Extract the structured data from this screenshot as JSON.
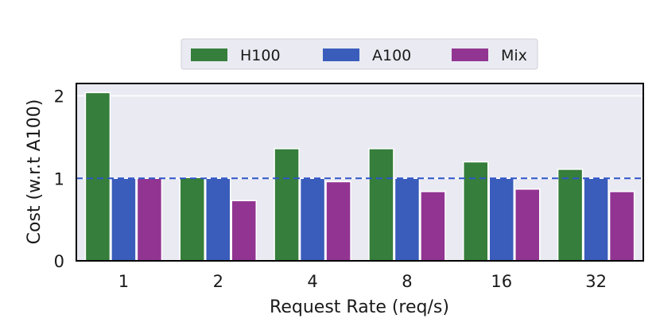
{
  "chart_data": {
    "type": "bar",
    "title": "",
    "xlabel": "Request Rate (req/s)",
    "ylabel": "Cost (w.r.t A100)",
    "categories": [
      "1",
      "2",
      "4",
      "8",
      "16",
      "32"
    ],
    "series": [
      {
        "name": "H100",
        "color": "#367e3b",
        "values": [
          2.04,
          1.01,
          1.36,
          1.36,
          1.2,
          1.11
        ]
      },
      {
        "name": "A100",
        "color": "#3a5dbb",
        "values": [
          1.0,
          1.0,
          1.0,
          1.0,
          1.0,
          1.0
        ]
      },
      {
        "name": "Mix",
        "color": "#923592",
        "values": [
          1.0,
          0.73,
          0.96,
          0.84,
          0.87,
          0.84
        ]
      }
    ],
    "ylim": [
      0,
      2.15
    ],
    "yticks": [
      "0",
      "1",
      "2"
    ],
    "reference_line": {
      "y": 1.0,
      "style": "dashed",
      "color": "#2f55c8"
    },
    "grid": true,
    "legend_position": "top-center"
  }
}
